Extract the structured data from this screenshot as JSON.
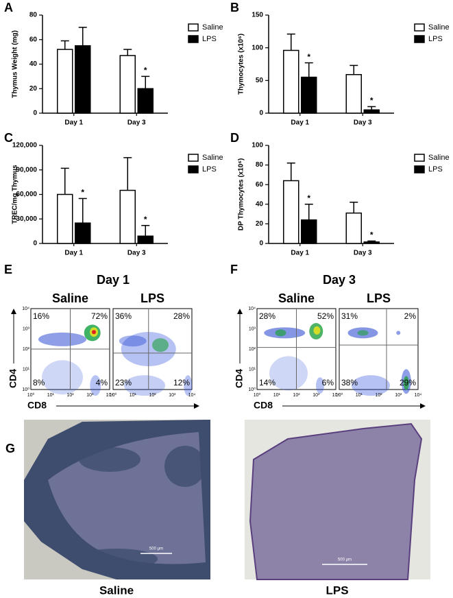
{
  "chart_data": [
    {
      "type": "bar",
      "panel": "A",
      "ylabel": "Thymus Weight (mg)",
      "categories": [
        "Day 1",
        "Day 3"
      ],
      "series": [
        {
          "name": "Saline",
          "color": "#ffffff",
          "values": [
            52,
            47
          ],
          "errors": [
            7,
            5
          ],
          "significance": [
            null,
            null
          ]
        },
        {
          "name": "LPS",
          "color": "#000000",
          "values": [
            55,
            20
          ],
          "errors": [
            15,
            10
          ],
          "significance": [
            null,
            "*"
          ]
        }
      ],
      "ylim": [
        0,
        80
      ],
      "yticks": [
        0,
        20,
        40,
        60,
        80
      ]
    },
    {
      "type": "bar",
      "panel": "B",
      "ylabel": "Thymocytes (x10⁶)",
      "categories": [
        "Day 1",
        "Day 3"
      ],
      "series": [
        {
          "name": "Saline",
          "color": "#ffffff",
          "values": [
            96,
            59
          ],
          "errors": [
            25,
            14
          ],
          "significance": [
            null,
            null
          ]
        },
        {
          "name": "LPS",
          "color": "#000000",
          "values": [
            55,
            5
          ],
          "errors": [
            22,
            5
          ],
          "significance": [
            "*",
            "*"
          ]
        }
      ],
      "ylim": [
        0,
        150
      ],
      "yticks": [
        0,
        50,
        100,
        150
      ]
    },
    {
      "type": "bar",
      "panel": "C",
      "ylabel": "TREC/mg Thymus",
      "categories": [
        "Day 1",
        "Day 3"
      ],
      "series": [
        {
          "name": "Saline",
          "color": "#ffffff",
          "values": [
            60000,
            65000
          ],
          "errors": [
            32000,
            40000
          ],
          "significance": [
            null,
            null
          ]
        },
        {
          "name": "LPS",
          "color": "#000000",
          "values": [
            25000,
            9000
          ],
          "errors": [
            30000,
            13000
          ],
          "significance": [
            "*",
            "*"
          ]
        }
      ],
      "ylim": [
        0,
        120000
      ],
      "yticks": [
        0,
        {
          "value": 30000,
          "label": "30,000"
        },
        {
          "value": 60000,
          "label": "60,000"
        },
        {
          "value": 90000,
          "label": "90,000"
        },
        {
          "value": 120000,
          "label": "120,000"
        }
      ]
    },
    {
      "type": "bar",
      "panel": "D",
      "ylabel": "DP Thymocytes (x10⁶)",
      "categories": [
        "Day 1",
        "Day 3"
      ],
      "series": [
        {
          "name": "Saline",
          "color": "#ffffff",
          "values": [
            64,
            31
          ],
          "errors": [
            18,
            11
          ],
          "significance": [
            null,
            null
          ]
        },
        {
          "name": "LPS",
          "color": "#000000",
          "values": [
            24,
            1.5
          ],
          "errors": [
            16,
            1
          ],
          "significance": [
            "*",
            "*"
          ]
        }
      ],
      "ylim": [
        0,
        100
      ],
      "yticks": [
        0,
        20,
        40,
        60,
        80,
        100
      ]
    }
  ],
  "flow": [
    {
      "panel": "E",
      "title": "Day 1",
      "y_label": "CD4",
      "x_label": "CD8",
      "axis_ticks": [
        "10⁰",
        "10¹",
        "10²",
        "10³",
        "10⁴"
      ],
      "plots": [
        {
          "name": "Saline",
          "quadrants": [
            "16%",
            "72%",
            "8%",
            "4%"
          ]
        },
        {
          "name": "LPS",
          "quadrants": [
            "36%",
            "28%",
            "23%",
            "12%"
          ]
        }
      ]
    },
    {
      "panel": "F",
      "title": "Day 3",
      "y_label": "CD4",
      "x_label": "CD8",
      "axis_ticks": [
        "10⁰",
        "10¹",
        "10²",
        "10³",
        "10⁴"
      ],
      "plots": [
        {
          "name": "Saline",
          "quadrants": [
            "28%",
            "52%",
            "14%",
            "6%"
          ]
        },
        {
          "name": "LPS",
          "quadrants": [
            "31%",
            "2%",
            "38%",
            "29%"
          ]
        }
      ]
    }
  ],
  "histology": {
    "panel": "G",
    "images": [
      {
        "label": "Saline",
        "scale_bar": "500 μm"
      },
      {
        "label": "LPS",
        "scale_bar": "500 μm"
      }
    ]
  }
}
